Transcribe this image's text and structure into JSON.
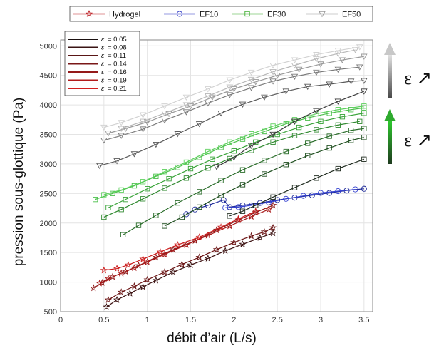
{
  "chart_data": {
    "type": "line",
    "xlabel": "débit d’air (L/s)",
    "ylabel": "pression sous-glottique (Pa)",
    "xlim": [
      0,
      3.6
    ],
    "ylim": [
      500,
      5100
    ],
    "xticks": [
      "0",
      "0.5",
      "1",
      "1.5",
      "2",
      "2.5",
      "3",
      "3.5"
    ],
    "yticks": [
      "500",
      "1000",
      "1500",
      "2000",
      "2500",
      "3000",
      "3500",
      "4000",
      "4500",
      "5000"
    ],
    "grid": true,
    "legend_models": [
      {
        "name": "Hydrogel",
        "color": "#c0282d",
        "marker": "star"
      },
      {
        "name": "EF10",
        "color": "#2a35c4",
        "marker": "circle"
      },
      {
        "name": "EF30",
        "color": "#3fae2f",
        "marker": "square"
      },
      {
        "name": "EF50",
        "color": "#9a9a9a",
        "marker": "triangle"
      }
    ],
    "legend_strain_prefix": "ε",
    "legend_strain": [
      {
        "label": "= 0.05",
        "color": "#1a1010"
      },
      {
        "label": "= 0.08",
        "color": "#3a1414"
      },
      {
        "label": "= 0.11",
        "color": "#5a1616"
      },
      {
        "label": "= 0.14",
        "color": "#7a1818"
      },
      {
        "label": "= 0.16",
        "color": "#951a1a"
      },
      {
        "label": "= 0.19",
        "color": "#b21c1c"
      },
      {
        "label": "= 0.21",
        "color": "#d21e1e"
      }
    ],
    "arrow_labels": [
      "ε ↗",
      "ε ↗"
    ],
    "arrow_colors": {
      "gray": "#c8c8c8",
      "green": "#2eaa2e"
    },
    "series": [
      {
        "model": "Hydrogel",
        "color": "#3b1010",
        "x": [
          0.53,
          0.65,
          0.8,
          0.95,
          1.1,
          1.3,
          1.5,
          1.7,
          1.9,
          2.1,
          2.3,
          2.45
        ],
        "y": [
          580,
          700,
          810,
          920,
          1030,
          1170,
          1290,
          1400,
          1530,
          1640,
          1750,
          1830
        ]
      },
      {
        "model": "Hydrogel",
        "color": "#6b1414",
        "x": [
          0.55,
          0.7,
          0.85,
          1.0,
          1.2,
          1.4,
          1.6,
          1.8,
          2.0,
          2.2,
          2.35,
          2.45
        ],
        "y": [
          700,
          830,
          930,
          1040,
          1170,
          1300,
          1420,
          1550,
          1670,
          1780,
          1850,
          1920
        ]
      },
      {
        "model": "Hydrogel",
        "color": "#8e1818",
        "x": [
          0.38,
          0.48,
          0.6,
          0.75,
          0.9,
          1.1,
          1.3,
          1.55,
          1.8,
          2.05,
          2.25,
          2.45
        ],
        "y": [
          900,
          990,
          1090,
          1180,
          1280,
          1420,
          1550,
          1700,
          1880,
          2050,
          2180,
          2300
        ]
      },
      {
        "model": "Hydrogel",
        "color": "#a81a1a",
        "x": [
          0.45,
          0.55,
          0.7,
          0.85,
          1.0,
          1.2,
          1.45,
          1.7,
          1.95,
          2.2,
          2.4
        ],
        "y": [
          980,
          1060,
          1150,
          1240,
          1340,
          1470,
          1630,
          1790,
          1950,
          2110,
          2230
        ]
      },
      {
        "model": "Hydrogel",
        "color": "#cc1f1f",
        "x": [
          0.5,
          0.65,
          0.78,
          0.95,
          1.15,
          1.35,
          1.6,
          1.85,
          2.05,
          2.25
        ],
        "y": [
          1200,
          1230,
          1290,
          1390,
          1510,
          1630,
          1760,
          1930,
          2070,
          2200
        ]
      },
      {
        "model": "EF10",
        "color": "#1e2a9a",
        "x": [
          1.45,
          1.55,
          1.7,
          1.88,
          1.95,
          2.1,
          2.3,
          2.5,
          2.7,
          2.9,
          3.1,
          3.3,
          3.5
        ],
        "y": [
          2150,
          2230,
          2300,
          2390,
          2270,
          2300,
          2340,
          2390,
          2430,
          2470,
          2510,
          2550,
          2580
        ]
      },
      {
        "model": "EF10",
        "color": "#3542d0",
        "x": [
          1.9,
          2.05,
          2.2,
          2.4,
          2.6,
          2.8,
          3.0,
          3.2,
          3.4
        ],
        "y": [
          2260,
          2270,
          2300,
          2350,
          2410,
          2460,
          2510,
          2540,
          2570
        ]
      },
      {
        "model": "EF30",
        "color": "#1e2a1e",
        "x": [
          1.95,
          2.1,
          2.25,
          2.45,
          2.7,
          2.95,
          3.2,
          3.5
        ],
        "y": [
          2120,
          2200,
          2300,
          2440,
          2600,
          2760,
          2920,
          3080
        ]
      },
      {
        "model": "EF30",
        "color": "#1f4f1f",
        "x": [
          1.2,
          1.4,
          1.6,
          1.85,
          2.1,
          2.35,
          2.6,
          2.85,
          3.1,
          3.35,
          3.5
        ],
        "y": [
          1950,
          2100,
          2270,
          2470,
          2650,
          2830,
          2990,
          3140,
          3270,
          3400,
          3450
        ]
      },
      {
        "model": "EF30",
        "color": "#2a6d2a",
        "x": [
          0.72,
          0.9,
          1.1,
          1.35,
          1.6,
          1.85,
          2.1,
          2.35,
          2.6,
          2.85,
          3.1,
          3.35,
          3.5
        ],
        "y": [
          1800,
          1960,
          2130,
          2340,
          2530,
          2720,
          2900,
          3060,
          3210,
          3350,
          3470,
          3570,
          3600
        ]
      },
      {
        "model": "EF30",
        "color": "#318a31",
        "x": [
          0.5,
          0.7,
          0.95,
          1.2,
          1.45,
          1.7,
          1.95,
          2.2,
          2.45,
          2.7,
          2.95,
          3.2,
          3.45
        ],
        "y": [
          2100,
          2230,
          2410,
          2590,
          2760,
          2930,
          3090,
          3230,
          3370,
          3480,
          3580,
          3660,
          3720
        ]
      },
      {
        "model": "EF30",
        "color": "#38a338",
        "x": [
          0.55,
          0.75,
          1.0,
          1.25,
          1.5,
          1.75,
          2.0,
          2.25,
          2.5,
          2.75,
          3.0,
          3.25,
          3.5
        ],
        "y": [
          2260,
          2400,
          2580,
          2750,
          2920,
          3080,
          3220,
          3370,
          3500,
          3620,
          3720,
          3800,
          3860
        ]
      },
      {
        "model": "EF30",
        "color": "#4cc04c",
        "x": [
          0.4,
          0.6,
          0.85,
          1.1,
          1.35,
          1.6,
          1.85,
          2.1,
          2.35,
          2.6,
          2.85,
          3.1,
          3.35,
          3.5
        ],
        "y": [
          2400,
          2500,
          2630,
          2790,
          2940,
          3110,
          3280,
          3420,
          3550,
          3680,
          3780,
          3860,
          3920,
          3950
        ]
      },
      {
        "model": "EF30",
        "color": "#5ed05e",
        "x": [
          0.5,
          0.7,
          0.95,
          1.2,
          1.45,
          1.7,
          1.95,
          2.2,
          2.45,
          2.7,
          2.95,
          3.2,
          3.5
        ],
        "y": [
          2480,
          2560,
          2700,
          2870,
          3030,
          3210,
          3370,
          3510,
          3640,
          3750,
          3850,
          3920,
          3980
        ]
      },
      {
        "model": "EF50",
        "color": "#3a3a3a",
        "x": [
          1.8,
          2.0,
          2.2,
          2.45,
          2.7,
          2.95,
          3.2,
          3.5
        ],
        "y": [
          2950,
          3110,
          3310,
          3500,
          3720,
          3900,
          4060,
          4230
        ]
      },
      {
        "model": "EF50",
        "color": "#5a5a5a",
        "x": [
          0.45,
          0.65,
          0.85,
          1.1,
          1.35,
          1.6,
          1.85,
          2.1,
          2.35,
          2.6,
          2.85,
          3.1,
          3.35,
          3.5
        ],
        "y": [
          2970,
          3050,
          3170,
          3330,
          3510,
          3680,
          3860,
          4010,
          4130,
          4230,
          4310,
          4350,
          4400,
          4410
        ]
      },
      {
        "model": "EF50",
        "color": "#7a7a7a",
        "x": [
          0.5,
          0.7,
          0.95,
          1.2,
          1.45,
          1.7,
          1.95,
          2.2,
          2.45,
          2.7,
          2.95,
          3.2,
          3.45
        ],
        "y": [
          3400,
          3480,
          3590,
          3740,
          3880,
          4030,
          4170,
          4290,
          4400,
          4480,
          4550,
          4600,
          4640
        ]
      },
      {
        "model": "EF50",
        "color": "#999999",
        "x": [
          0.55,
          0.75,
          1.0,
          1.25,
          1.5,
          1.75,
          2.0,
          2.25,
          2.5,
          2.75,
          3.0,
          3.25,
          3.5
        ],
        "y": [
          3520,
          3600,
          3710,
          3850,
          3980,
          4130,
          4270,
          4390,
          4500,
          4600,
          4690,
          4760,
          4820
        ]
      },
      {
        "model": "EF50",
        "color": "#b8b8b8",
        "x": [
          0.7,
          0.95,
          1.2,
          1.45,
          1.7,
          1.95,
          2.2,
          2.45,
          2.7,
          2.95,
          3.2,
          3.4
        ],
        "y": [
          3600,
          3720,
          3860,
          4000,
          4150,
          4300,
          4430,
          4560,
          4670,
          4780,
          4870,
          4930
        ]
      },
      {
        "model": "EF50",
        "color": "#d2d2d2",
        "x": [
          0.5,
          0.7,
          0.95,
          1.2,
          1.45,
          1.7,
          1.95,
          2.2,
          2.45,
          2.7,
          2.95,
          3.2,
          3.45
        ],
        "y": [
          3620,
          3700,
          3830,
          3980,
          4130,
          4270,
          4420,
          4550,
          4670,
          4760,
          4850,
          4920,
          4980
        ]
      }
    ]
  }
}
